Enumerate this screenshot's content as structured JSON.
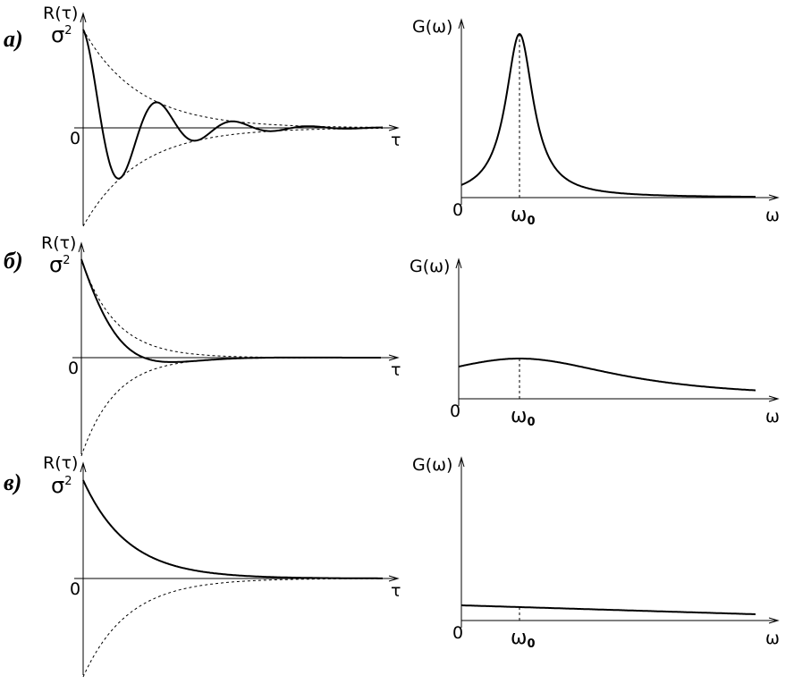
{
  "rows": [
    {
      "label": "а)",
      "left": {
        "y_label": "R(τ)",
        "sigma": "σ",
        "sigma_sup": "2",
        "origin": "0",
        "x_label": "τ"
      },
      "right": {
        "y_label": "G(ω)",
        "origin": "0",
        "omega0": "ω",
        "omega0_sub": "0",
        "x_label": "ω"
      }
    },
    {
      "label": "б)",
      "left": {
        "y_label": "R(τ)",
        "sigma": "σ",
        "sigma_sup": "2",
        "origin": "0",
        "x_label": "τ"
      },
      "right": {
        "y_label": "G(ω)",
        "origin": "0",
        "omega0": "ω",
        "omega0_sub": "0",
        "x_label": "ω"
      }
    },
    {
      "label": "в)",
      "left": {
        "y_label": "R(τ)",
        "sigma": "σ",
        "sigma_sup": "2",
        "origin": "0",
        "x_label": "τ"
      },
      "right": {
        "y_label": "G(ω)",
        "origin": "0",
        "omega0": "ω",
        "omega0_sub": "0",
        "x_label": "ω"
      }
    }
  ]
}
